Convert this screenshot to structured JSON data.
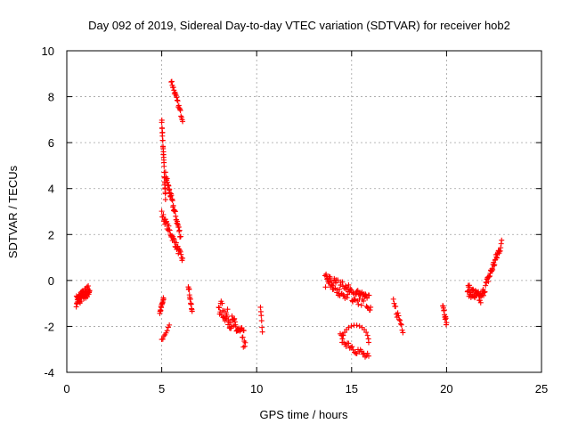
{
  "chart_data": {
    "type": "scatter",
    "title": "Day 092 of 2019, Sidereal Day-to-day VTEC variation (SDTVAR) for receiver hob2",
    "xlabel": "GPS time / hours",
    "ylabel": "SDTVAR / TECUs",
    "xlim": [
      0,
      25
    ],
    "ylim": [
      -4,
      10
    ],
    "xticks": [
      0,
      5,
      10,
      15,
      20,
      25
    ],
    "yticks": [
      -4,
      -2,
      0,
      2,
      4,
      6,
      8,
      10
    ],
    "grid": true,
    "marker": "+",
    "marker_color": "#ff0000",
    "segments": [
      {
        "x0": 0.5,
        "x1": 1.2,
        "y0": -0.9,
        "y1": -0.4,
        "n": 60,
        "spread": 0.25
      },
      {
        "x0": 4.9,
        "x1": 5.1,
        "y0": -1.4,
        "y1": -0.8,
        "n": 14,
        "spread": 0.1
      },
      {
        "x0": 5.0,
        "x1": 5.4,
        "y0": -2.6,
        "y1": -2.0,
        "n": 8,
        "spread": 0.08
      },
      {
        "x0": 5.0,
        "x1": 5.2,
        "y0": 7.0,
        "y1": 3.6,
        "n": 30,
        "spread": 0.15
      },
      {
        "x0": 5.0,
        "x1": 6.1,
        "y0": 2.9,
        "y1": 0.9,
        "n": 40,
        "spread": 0.15
      },
      {
        "x0": 5.2,
        "x1": 6.0,
        "y0": 4.6,
        "y1": 1.9,
        "n": 40,
        "spread": 0.15
      },
      {
        "x0": 5.5,
        "x1": 6.1,
        "y0": 8.7,
        "y1": 7.0,
        "n": 22,
        "spread": 0.1
      },
      {
        "x0": 6.4,
        "x1": 6.6,
        "y0": -0.2,
        "y1": -1.4,
        "n": 14,
        "spread": 0.1
      },
      {
        "x0": 8.0,
        "x1": 9.4,
        "y0": -1.1,
        "y1": -2.6,
        "n": 55,
        "spread": 0.35
      },
      {
        "x0": 9.3,
        "x1": 9.4,
        "y0": -2.9,
        "y1": -2.9,
        "n": 1,
        "spread": 0.0
      },
      {
        "x0": 10.2,
        "x1": 10.3,
        "y0": -1.2,
        "y1": -2.2,
        "n": 6,
        "spread": 0.08
      },
      {
        "x0": 13.6,
        "x1": 16.0,
        "y0": 0.0,
        "y1": -1.0,
        "n": 90,
        "spread": 0.35
      },
      {
        "x0": 14.4,
        "x1": 15.9,
        "y0": -2.5,
        "y1": -3.4,
        "n": 25,
        "spread": 0.2
      },
      {
        "x0": 17.2,
        "x1": 17.7,
        "y0": -1.0,
        "y1": -2.1,
        "n": 14,
        "spread": 0.2
      },
      {
        "x0": 19.8,
        "x1": 20.0,
        "y0": -1.0,
        "y1": -1.9,
        "n": 12,
        "spread": 0.12
      },
      {
        "x0": 21.1,
        "x1": 21.8,
        "y0": -0.4,
        "y1": -0.8,
        "n": 35,
        "spread": 0.25
      },
      {
        "x0": 21.8,
        "x1": 22.9,
        "y0": -0.8,
        "y1": 1.6,
        "n": 45,
        "spread": 0.2
      }
    ],
    "arcs": [
      {
        "cx": 15.2,
        "cy": -2.7,
        "rx": 0.7,
        "ry": 0.75,
        "a0": 180,
        "a1": 360,
        "n": 16
      }
    ]
  }
}
